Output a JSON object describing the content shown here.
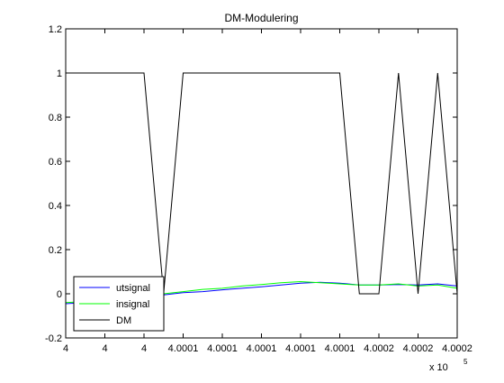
{
  "chart_data": {
    "type": "line",
    "title": "DM-Modulering",
    "xlabel": "",
    "ylabel": "",
    "x_exponent_label": "x 10",
    "x_exponent_power": "5",
    "xlim": [
      0,
      20
    ],
    "ylim": [
      -0.2,
      1.2
    ],
    "xticks": [
      0,
      2,
      4,
      6,
      8,
      10,
      12,
      14,
      16,
      18,
      20
    ],
    "xtick_labels": [
      "4",
      "4",
      "4",
      "4.0001",
      "4.0001",
      "4.0001",
      "4.0001",
      "4.0001",
      "4.0002",
      "4.0002",
      "4.0002"
    ],
    "yticks": [
      -0.2,
      0,
      0.2,
      0.4,
      0.6,
      0.8,
      1,
      1.2
    ],
    "ytick_labels": [
      "-0.2",
      "0",
      "0.2",
      "0.4",
      "0.6",
      "0.8",
      "1",
      "1.2"
    ],
    "grid": false,
    "legend_position": "bottom-left",
    "series": [
      {
        "name": "utsignal",
        "color": "#0000ff",
        "x": [
          0,
          1,
          2,
          3,
          4,
          5,
          6,
          7,
          8,
          9,
          10,
          11,
          12,
          13,
          14,
          15,
          16,
          17,
          18,
          19,
          20
        ],
        "y": [
          -0.045,
          -0.04,
          -0.035,
          -0.025,
          -0.015,
          -0.005,
          0.005,
          0.01,
          0.018,
          0.025,
          0.032,
          0.04,
          0.048,
          0.052,
          0.048,
          0.04,
          0.04,
          0.042,
          0.04,
          0.045,
          0.035
        ]
      },
      {
        "name": "insignal",
        "color": "#00ff00",
        "x": [
          0,
          1,
          2,
          3,
          4,
          5,
          6,
          7,
          8,
          9,
          10,
          11,
          12,
          13,
          14,
          15,
          16,
          17,
          18,
          19,
          20
        ],
        "y": [
          -0.04,
          -0.035,
          -0.03,
          -0.02,
          -0.01,
          0.0,
          0.01,
          0.02,
          0.025,
          0.035,
          0.042,
          0.05,
          0.055,
          0.05,
          0.045,
          0.04,
          0.04,
          0.045,
          0.035,
          0.04,
          0.025
        ]
      },
      {
        "name": "DM",
        "color": "#000000",
        "x": [
          0,
          4,
          5,
          6,
          14,
          15,
          16,
          17,
          18,
          19,
          20
        ],
        "y": [
          1,
          1,
          0,
          1,
          1,
          0,
          0,
          1,
          0,
          1,
          0
        ]
      }
    ]
  }
}
